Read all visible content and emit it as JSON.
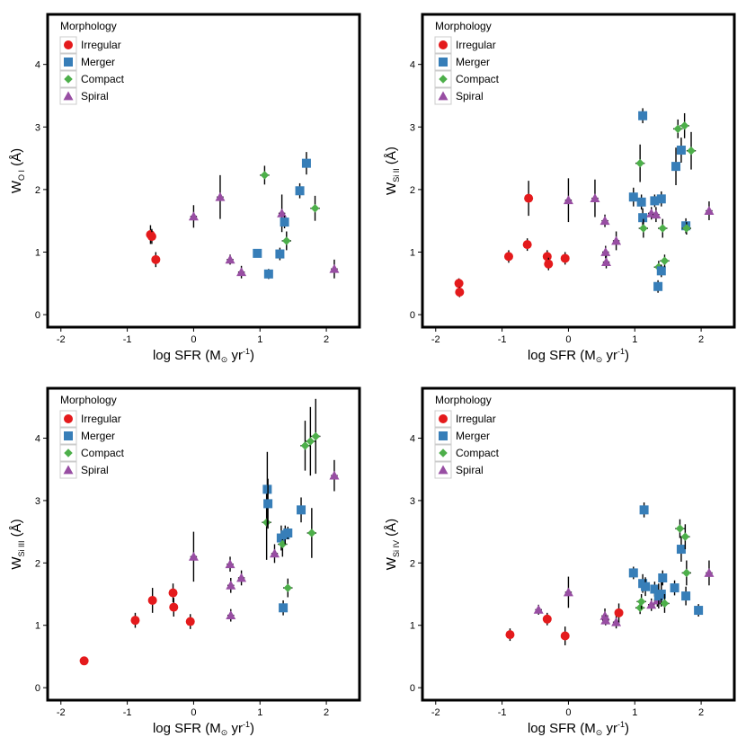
{
  "legend": {
    "title": "Morphology",
    "entries": [
      {
        "name": "Irregular",
        "marker": "circle",
        "color": "#e41a1c"
      },
      {
        "name": "Merger",
        "marker": "square",
        "color": "#377eb8"
      },
      {
        "name": "Compact",
        "marker": "diamond",
        "color": "#4daf4a"
      },
      {
        "name": "Spiral",
        "marker": "triangle",
        "color": "#984ea3"
      }
    ]
  },
  "xaxis": {
    "label_main": "log SFR (M",
    "label_sun": "⊙",
    "label_tail": " yr",
    "label_sup": "-1",
    "label_close": ")",
    "ticks": [
      "-2",
      "-1",
      "0",
      "1",
      "2"
    ],
    "tick_values": [
      -2,
      -1,
      0,
      1,
      2
    ],
    "range": [
      -2.2,
      2.5
    ]
  },
  "yaxis": {
    "ticks": [
      "0",
      "1",
      "2",
      "3",
      "4"
    ],
    "tick_values": [
      0,
      1,
      2,
      3,
      4
    ],
    "range": [
      -0.2,
      4.8
    ]
  },
  "chart_data": [
    {
      "type": "scatter",
      "ylabel_main": "W",
      "ylabel_sub": "O I",
      "ylabel_unit": " (Å)",
      "points": [
        {
          "x": -0.65,
          "y": 1.28,
          "yerr": 0.15,
          "xerr": 0.05,
          "group": "Irregular"
        },
        {
          "x": -0.63,
          "y": 1.25,
          "yerr": 0.12,
          "xerr": 0.05,
          "group": "Irregular"
        },
        {
          "x": -0.57,
          "y": 0.88,
          "yerr": 0.12,
          "xerr": 0.05,
          "group": "Irregular"
        },
        {
          "x": 0.0,
          "y": 1.57,
          "yerr": 0.18,
          "xerr": 0.05,
          "group": "Spiral"
        },
        {
          "x": 0.4,
          "y": 1.88,
          "yerr": 0.35,
          "xerr": 0.05,
          "group": "Spiral"
        },
        {
          "x": 0.55,
          "y": 0.88,
          "yerr": 0.08,
          "xerr": 0.05,
          "group": "Spiral"
        },
        {
          "x": 0.72,
          "y": 0.68,
          "yerr": 0.1,
          "xerr": 0.05,
          "group": "Spiral"
        },
        {
          "x": 0.96,
          "y": 0.98,
          "yerr": 0.06,
          "xerr": 0.05,
          "group": "Merger"
        },
        {
          "x": 1.07,
          "y": 2.23,
          "yerr": 0.15,
          "xerr": 0.07,
          "group": "Compact"
        },
        {
          "x": 1.13,
          "y": 0.65,
          "yerr": 0.08,
          "xerr": 0.05,
          "group": "Merger"
        },
        {
          "x": 1.3,
          "y": 0.97,
          "yerr": 0.1,
          "xerr": 0.05,
          "group": "Merger"
        },
        {
          "x": 1.33,
          "y": 1.62,
          "yerr": 0.3,
          "xerr": 0.05,
          "group": "Spiral"
        },
        {
          "x": 1.37,
          "y": 1.48,
          "yerr": 0.1,
          "xerr": 0.05,
          "group": "Merger"
        },
        {
          "x": 1.4,
          "y": 1.18,
          "yerr": 0.15,
          "xerr": 0.07,
          "group": "Compact"
        },
        {
          "x": 1.6,
          "y": 1.98,
          "yerr": 0.12,
          "xerr": 0.05,
          "group": "Merger"
        },
        {
          "x": 1.7,
          "y": 2.42,
          "yerr": 0.18,
          "xerr": 0.05,
          "group": "Merger"
        },
        {
          "x": 1.83,
          "y": 1.7,
          "yerr": 0.2,
          "xerr": 0.07,
          "group": "Compact"
        },
        {
          "x": 2.12,
          "y": 0.73,
          "yerr": 0.15,
          "xerr": 0.05,
          "group": "Spiral"
        }
      ]
    },
    {
      "type": "scatter",
      "ylabel_main": "W",
      "ylabel_sub": "Si II",
      "ylabel_unit": " (Å)",
      "points": [
        {
          "x": -1.65,
          "y": 0.5,
          "yerr": 0.08,
          "xerr": 0.05,
          "group": "Irregular"
        },
        {
          "x": -1.64,
          "y": 0.36,
          "yerr": 0.08,
          "xerr": 0.05,
          "group": "Irregular"
        },
        {
          "x": -0.9,
          "y": 0.93,
          "yerr": 0.1,
          "xerr": 0.05,
          "group": "Irregular"
        },
        {
          "x": -0.62,
          "y": 1.12,
          "yerr": 0.1,
          "xerr": 0.05,
          "group": "Irregular"
        },
        {
          "x": -0.6,
          "y": 1.86,
          "yerr": 0.28,
          "xerr": 0.05,
          "group": "Irregular"
        },
        {
          "x": -0.32,
          "y": 0.93,
          "yerr": 0.1,
          "xerr": 0.05,
          "group": "Irregular"
        },
        {
          "x": -0.3,
          "y": 0.81,
          "yerr": 0.1,
          "xerr": 0.05,
          "group": "Irregular"
        },
        {
          "x": -0.05,
          "y": 0.9,
          "yerr": 0.1,
          "xerr": 0.05,
          "group": "Irregular"
        },
        {
          "x": 0.0,
          "y": 1.83,
          "yerr": 0.35,
          "xerr": 0.05,
          "group": "Spiral"
        },
        {
          "x": 0.4,
          "y": 1.86,
          "yerr": 0.3,
          "xerr": 0.05,
          "group": "Spiral"
        },
        {
          "x": 0.55,
          "y": 1.5,
          "yerr": 0.1,
          "xerr": 0.05,
          "group": "Spiral"
        },
        {
          "x": 0.56,
          "y": 1.0,
          "yerr": 0.1,
          "xerr": 0.05,
          "group": "Spiral"
        },
        {
          "x": 0.57,
          "y": 0.84,
          "yerr": 0.1,
          "xerr": 0.05,
          "group": "Spiral"
        },
        {
          "x": 0.72,
          "y": 1.18,
          "yerr": 0.15,
          "xerr": 0.05,
          "group": "Spiral"
        },
        {
          "x": 0.98,
          "y": 1.88,
          "yerr": 0.15,
          "xerr": 0.05,
          "group": "Merger"
        },
        {
          "x": 1.08,
          "y": 2.42,
          "yerr": 0.3,
          "xerr": 0.07,
          "group": "Compact"
        },
        {
          "x": 1.1,
          "y": 1.8,
          "yerr": 0.12,
          "xerr": 0.05,
          "group": "Merger"
        },
        {
          "x": 1.12,
          "y": 1.55,
          "yerr": 0.15,
          "xerr": 0.05,
          "group": "Merger"
        },
        {
          "x": 1.12,
          "y": 3.18,
          "yerr": 0.12,
          "xerr": 0.05,
          "group": "Merger"
        },
        {
          "x": 1.13,
          "y": 1.38,
          "yerr": 0.15,
          "xerr": 0.07,
          "group": "Compact"
        },
        {
          "x": 1.25,
          "y": 1.62,
          "yerr": 0.1,
          "xerr": 0.05,
          "group": "Spiral"
        },
        {
          "x": 1.3,
          "y": 1.82,
          "yerr": 0.1,
          "xerr": 0.05,
          "group": "Merger"
        },
        {
          "x": 1.32,
          "y": 1.6,
          "yerr": 0.12,
          "xerr": 0.05,
          "group": "Spiral"
        },
        {
          "x": 1.35,
          "y": 0.45,
          "yerr": 0.1,
          "xerr": 0.05,
          "group": "Merger"
        },
        {
          "x": 1.36,
          "y": 0.76,
          "yerr": 0.1,
          "xerr": 0.07,
          "group": "Compact"
        },
        {
          "x": 1.4,
          "y": 1.85,
          "yerr": 0.12,
          "xerr": 0.05,
          "group": "Merger"
        },
        {
          "x": 1.4,
          "y": 0.7,
          "yerr": 0.1,
          "xerr": 0.05,
          "group": "Merger"
        },
        {
          "x": 1.42,
          "y": 1.38,
          "yerr": 0.15,
          "xerr": 0.07,
          "group": "Compact"
        },
        {
          "x": 1.45,
          "y": 0.86,
          "yerr": 0.1,
          "xerr": 0.07,
          "group": "Compact"
        },
        {
          "x": 1.62,
          "y": 2.37,
          "yerr": 0.3,
          "xerr": 0.05,
          "group": "Merger"
        },
        {
          "x": 1.65,
          "y": 2.97,
          "yerr": 0.15,
          "xerr": 0.07,
          "group": "Compact"
        },
        {
          "x": 1.7,
          "y": 2.63,
          "yerr": 0.2,
          "xerr": 0.05,
          "group": "Merger"
        },
        {
          "x": 1.75,
          "y": 3.02,
          "yerr": 0.2,
          "xerr": 0.07,
          "group": "Compact"
        },
        {
          "x": 1.77,
          "y": 1.42,
          "yerr": 0.12,
          "xerr": 0.05,
          "group": "Merger"
        },
        {
          "x": 1.78,
          "y": 1.38,
          "yerr": 0.1,
          "xerr": 0.07,
          "group": "Compact"
        },
        {
          "x": 1.85,
          "y": 2.62,
          "yerr": 0.3,
          "xerr": 0.07,
          "group": "Compact"
        },
        {
          "x": 2.12,
          "y": 1.66,
          "yerr": 0.15,
          "xerr": 0.05,
          "group": "Spiral"
        }
      ]
    },
    {
      "type": "scatter",
      "ylabel_main": "W",
      "ylabel_sub": "Si III",
      "ylabel_unit": " (Å)",
      "points": [
        {
          "x": -1.65,
          "y": 0.43,
          "yerr": 0.06,
          "xerr": 0.06,
          "group": "Irregular"
        },
        {
          "x": -0.88,
          "y": 1.08,
          "yerr": 0.12,
          "xerr": 0.05,
          "group": "Irregular"
        },
        {
          "x": -0.62,
          "y": 1.4,
          "yerr": 0.2,
          "xerr": 0.05,
          "group": "Irregular"
        },
        {
          "x": -0.31,
          "y": 1.52,
          "yerr": 0.15,
          "xerr": 0.05,
          "group": "Irregular"
        },
        {
          "x": -0.3,
          "y": 1.29,
          "yerr": 0.15,
          "xerr": 0.05,
          "group": "Irregular"
        },
        {
          "x": -0.05,
          "y": 1.06,
          "yerr": 0.12,
          "xerr": 0.05,
          "group": "Irregular"
        },
        {
          "x": 0.0,
          "y": 2.1,
          "yerr": 0.4,
          "xerr": 0.05,
          "group": "Spiral"
        },
        {
          "x": 0.55,
          "y": 1.98,
          "yerr": 0.12,
          "xerr": 0.05,
          "group": "Spiral"
        },
        {
          "x": 0.56,
          "y": 1.64,
          "yerr": 0.12,
          "xerr": 0.05,
          "group": "Spiral"
        },
        {
          "x": 0.56,
          "y": 1.16,
          "yerr": 0.1,
          "xerr": 0.05,
          "group": "Spiral"
        },
        {
          "x": 0.72,
          "y": 1.76,
          "yerr": 0.12,
          "xerr": 0.05,
          "group": "Spiral"
        },
        {
          "x": 1.1,
          "y": 2.65,
          "yerr": 0.6,
          "xerr": 0.07,
          "group": "Compact"
        },
        {
          "x": 1.11,
          "y": 3.18,
          "yerr": 0.6,
          "xerr": 0.05,
          "group": "Merger"
        },
        {
          "x": 1.12,
          "y": 2.95,
          "yerr": 0.4,
          "xerr": 0.05,
          "group": "Merger"
        },
        {
          "x": 1.22,
          "y": 2.15,
          "yerr": 0.15,
          "xerr": 0.05,
          "group": "Spiral"
        },
        {
          "x": 1.32,
          "y": 2.4,
          "yerr": 0.2,
          "xerr": 0.05,
          "group": "Merger"
        },
        {
          "x": 1.34,
          "y": 2.3,
          "yerr": 0.2,
          "xerr": 0.07,
          "group": "Compact"
        },
        {
          "x": 1.35,
          "y": 1.28,
          "yerr": 0.12,
          "xerr": 0.05,
          "group": "Merger"
        },
        {
          "x": 1.38,
          "y": 2.45,
          "yerr": 0.15,
          "xerr": 0.05,
          "group": "Merger"
        },
        {
          "x": 1.42,
          "y": 2.48,
          "yerr": 0.1,
          "xerr": 0.05,
          "group": "Merger"
        },
        {
          "x": 1.42,
          "y": 1.6,
          "yerr": 0.15,
          "xerr": 0.07,
          "group": "Compact"
        },
        {
          "x": 1.62,
          "y": 2.85,
          "yerr": 0.2,
          "xerr": 0.05,
          "group": "Merger"
        },
        {
          "x": 1.68,
          "y": 3.88,
          "yerr": 0.4,
          "xerr": 0.07,
          "group": "Compact"
        },
        {
          "x": 1.76,
          "y": 3.95,
          "yerr": 0.55,
          "xerr": 0.07,
          "group": "Compact"
        },
        {
          "x": 1.78,
          "y": 2.48,
          "yerr": 0.4,
          "xerr": 0.07,
          "group": "Compact"
        },
        {
          "x": 1.84,
          "y": 4.03,
          "yerr": 0.6,
          "xerr": 0.07,
          "group": "Compact"
        },
        {
          "x": 2.12,
          "y": 3.4,
          "yerr": 0.25,
          "xerr": 0.05,
          "group": "Spiral"
        }
      ]
    },
    {
      "type": "scatter",
      "ylabel_main": "W",
      "ylabel_sub": "Si IV",
      "ylabel_unit": " (Å)",
      "points": [
        {
          "x": -0.88,
          "y": 0.85,
          "yerr": 0.1,
          "xerr": 0.05,
          "group": "Irregular"
        },
        {
          "x": -0.32,
          "y": 1.1,
          "yerr": 0.1,
          "xerr": 0.05,
          "group": "Irregular"
        },
        {
          "x": -0.45,
          "y": 1.25,
          "yerr": 0.08,
          "xerr": 0.05,
          "group": "Spiral"
        },
        {
          "x": -0.05,
          "y": 0.83,
          "yerr": 0.15,
          "xerr": 0.05,
          "group": "Irregular"
        },
        {
          "x": 0.0,
          "y": 1.53,
          "yerr": 0.25,
          "xerr": 0.05,
          "group": "Spiral"
        },
        {
          "x": 0.55,
          "y": 1.15,
          "yerr": 0.12,
          "xerr": 0.05,
          "group": "Spiral"
        },
        {
          "x": 0.56,
          "y": 1.08,
          "yerr": 0.08,
          "xerr": 0.05,
          "group": "Spiral"
        },
        {
          "x": 0.72,
          "y": 1.05,
          "yerr": 0.1,
          "xerr": 0.05,
          "group": "Spiral"
        },
        {
          "x": 0.76,
          "y": 1.2,
          "yerr": 0.15,
          "xerr": 0.05,
          "group": "Irregular"
        },
        {
          "x": 0.98,
          "y": 1.84,
          "yerr": 0.1,
          "xerr": 0.05,
          "group": "Merger"
        },
        {
          "x": 1.08,
          "y": 1.28,
          "yerr": 0.1,
          "xerr": 0.07,
          "group": "Compact"
        },
        {
          "x": 1.1,
          "y": 1.38,
          "yerr": 0.12,
          "xerr": 0.07,
          "group": "Compact"
        },
        {
          "x": 1.12,
          "y": 1.67,
          "yerr": 0.15,
          "xerr": 0.05,
          "group": "Merger"
        },
        {
          "x": 1.14,
          "y": 2.85,
          "yerr": 0.12,
          "xerr": 0.05,
          "group": "Merger"
        },
        {
          "x": 1.16,
          "y": 1.62,
          "yerr": 0.15,
          "xerr": 0.05,
          "group": "Merger"
        },
        {
          "x": 1.25,
          "y": 1.33,
          "yerr": 0.1,
          "xerr": 0.05,
          "group": "Spiral"
        },
        {
          "x": 1.3,
          "y": 1.58,
          "yerr": 0.12,
          "xerr": 0.05,
          "group": "Merger"
        },
        {
          "x": 1.34,
          "y": 1.4,
          "yerr": 0.1,
          "xerr": 0.05,
          "group": "Spiral"
        },
        {
          "x": 1.36,
          "y": 1.47,
          "yerr": 0.2,
          "xerr": 0.05,
          "group": "Merger"
        },
        {
          "x": 1.4,
          "y": 1.5,
          "yerr": 0.2,
          "xerr": 0.05,
          "group": "Merger"
        },
        {
          "x": 1.42,
          "y": 1.76,
          "yerr": 0.12,
          "xerr": 0.05,
          "group": "Merger"
        },
        {
          "x": 1.45,
          "y": 1.35,
          "yerr": 0.15,
          "xerr": 0.07,
          "group": "Compact"
        },
        {
          "x": 1.6,
          "y": 1.6,
          "yerr": 0.12,
          "xerr": 0.05,
          "group": "Merger"
        },
        {
          "x": 1.68,
          "y": 2.55,
          "yerr": 0.15,
          "xerr": 0.07,
          "group": "Compact"
        },
        {
          "x": 1.7,
          "y": 2.22,
          "yerr": 0.2,
          "xerr": 0.05,
          "group": "Merger"
        },
        {
          "x": 1.76,
          "y": 2.42,
          "yerr": 0.2,
          "xerr": 0.07,
          "group": "Compact"
        },
        {
          "x": 1.77,
          "y": 1.47,
          "yerr": 0.15,
          "xerr": 0.05,
          "group": "Merger"
        },
        {
          "x": 1.78,
          "y": 1.84,
          "yerr": 0.2,
          "xerr": 0.07,
          "group": "Compact"
        },
        {
          "x": 1.96,
          "y": 1.24,
          "yerr": 0.1,
          "xerr": 0.05,
          "group": "Merger"
        },
        {
          "x": 2.12,
          "y": 1.84,
          "yerr": 0.2,
          "xerr": 0.05,
          "group": "Spiral"
        }
      ]
    }
  ]
}
